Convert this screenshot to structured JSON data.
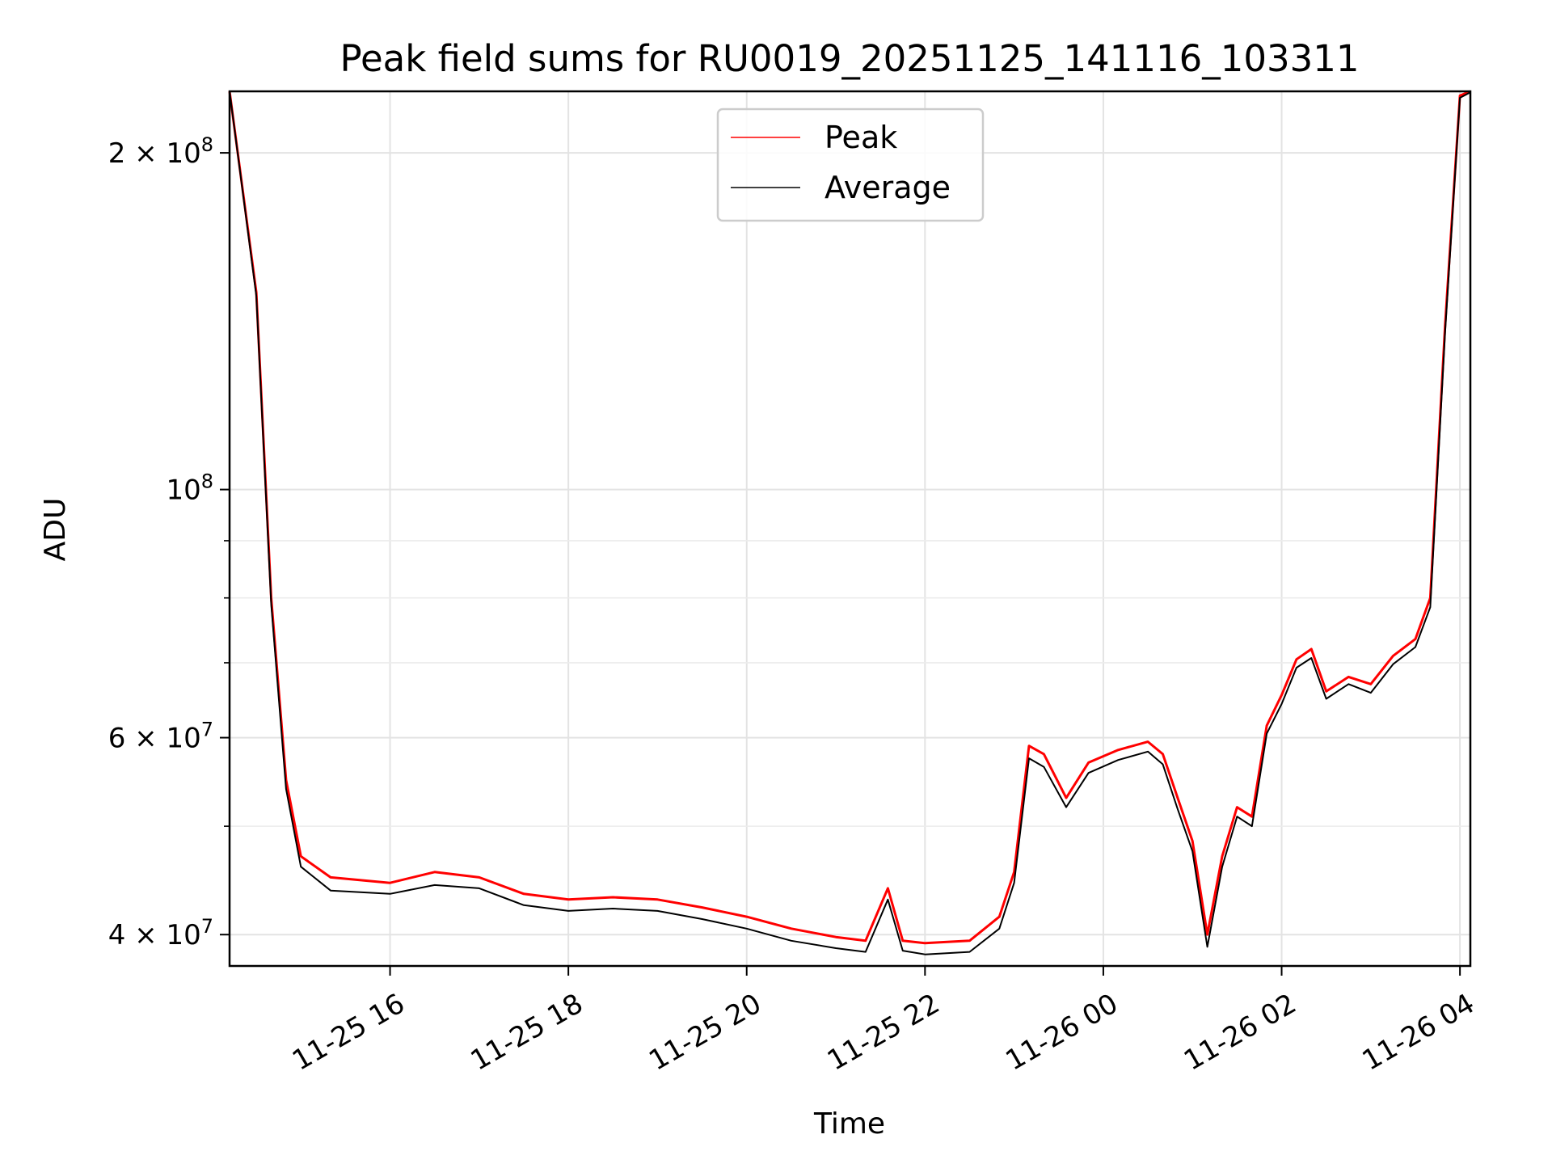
{
  "chart_data": {
    "type": "line",
    "title": "Peak field sums for RU0019_20251125_141116_103311",
    "xlabel": "Time",
    "ylabel": "ADU",
    "x_unit": "time",
    "xlim": [
      "11-25 14:12",
      "11-26 04:07"
    ],
    "ylim": [
      37500000,
      227000000
    ],
    "yscale": "log",
    "grid": true,
    "legend_position": "top-center",
    "x_ticks": [
      "11-25 16",
      "11-25 18",
      "11-25 20",
      "11-25 22",
      "11-26 00",
      "11-26 02",
      "11-26 04"
    ],
    "y_ticks_major": [
      {
        "value": 40000000,
        "mantissa": "4",
        "exp": "7"
      },
      {
        "value": 60000000,
        "mantissa": "6",
        "exp": "7"
      },
      {
        "value": 100000000,
        "mantissa": "",
        "exp": "8"
      },
      {
        "value": 200000000,
        "mantissa": "2",
        "exp": "8"
      }
    ],
    "y_ticks_minor": [
      50000000,
      70000000,
      80000000,
      90000000
    ],
    "x": [
      "11-25 14:12",
      "11-25 14:30",
      "11-25 14:40",
      "11-25 14:50",
      "11-25 15:00",
      "11-25 15:20",
      "11-25 16:00",
      "11-25 16:30",
      "11-25 17:00",
      "11-25 17:30",
      "11-25 18:00",
      "11-25 18:30",
      "11-25 19:00",
      "11-25 19:30",
      "11-25 20:00",
      "11-25 20:30",
      "11-25 21:00",
      "11-25 21:20",
      "11-25 21:35",
      "11-25 21:45",
      "11-25 22:00",
      "11-25 22:30",
      "11-25 22:50",
      "11-25 23:00",
      "11-25 23:10",
      "11-25 23:20",
      "11-25 23:35",
      "11-25 23:50",
      "11-26 00:10",
      "11-26 00:30",
      "11-26 00:40",
      "11-26 00:50",
      "11-26 01:00",
      "11-26 01:10",
      "11-26 01:20",
      "11-26 01:30",
      "11-26 01:40",
      "11-26 01:50",
      "11-26 02:00",
      "11-26 02:10",
      "11-26 02:20",
      "11-26 02:30",
      "11-26 02:45",
      "11-26 03:00",
      "11-26 03:15",
      "11-26 03:30",
      "11-26 03:40",
      "11-26 03:50",
      "11-26 04:00",
      "11-26 04:07"
    ],
    "series": [
      {
        "name": "Peak",
        "color": "#ff0000",
        "values": [
          230000000,
          150000000,
          80000000,
          55000000,
          47000000,
          45000000,
          44500000,
          45500000,
          45000000,
          43500000,
          43000000,
          43200000,
          43000000,
          42300000,
          41500000,
          40500000,
          39800000,
          39500000,
          44000000,
          39500000,
          39300000,
          39500000,
          41500000,
          45500000,
          59000000,
          58000000,
          53000000,
          57000000,
          58500000,
          59500000,
          58000000,
          53000000,
          48500000,
          40000000,
          47000000,
          52000000,
          51000000,
          61500000,
          65500000,
          70500000,
          72000000,
          66000000,
          68000000,
          67000000,
          71000000,
          73500000,
          80000000,
          140000000,
          225000000,
          227000000
        ]
      },
      {
        "name": "Average",
        "color": "#000000",
        "values": [
          230000000,
          149000000,
          79000000,
          54000000,
          46000000,
          43800000,
          43500000,
          44300000,
          44000000,
          42500000,
          42000000,
          42200000,
          42000000,
          41300000,
          40500000,
          39500000,
          38900000,
          38600000,
          43000000,
          38700000,
          38400000,
          38600000,
          40500000,
          44500000,
          57500000,
          56500000,
          52000000,
          55800000,
          57300000,
          58300000,
          56800000,
          51800000,
          47500000,
          39000000,
          46000000,
          51000000,
          50000000,
          60500000,
          64300000,
          69300000,
          70700000,
          65000000,
          67000000,
          65800000,
          69800000,
          72300000,
          78500000,
          138000000,
          224000000,
          226500000
        ]
      }
    ]
  }
}
